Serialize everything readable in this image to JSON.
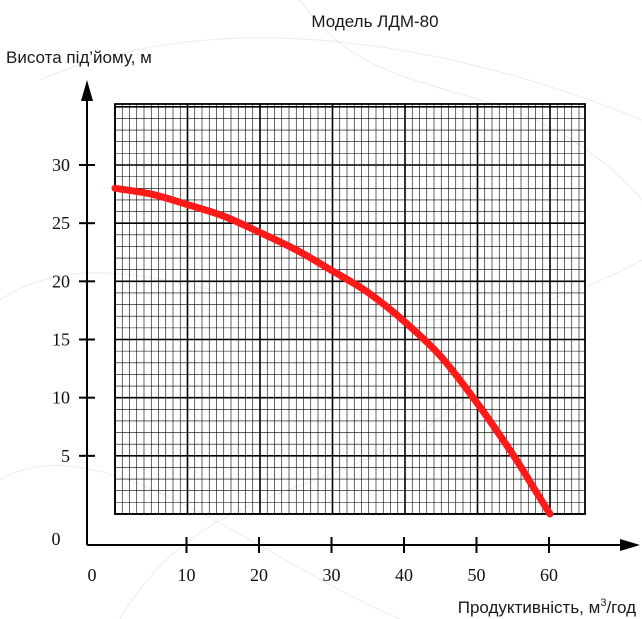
{
  "chart_data": {
    "type": "line",
    "title": "Модель ЛДМ-80",
    "ylabel": "Висота під’йому, м",
    "xlabel_main": "Продуктивність, м",
    "xlabel_sup": "3",
    "xlabel_tail": "/год",
    "x_ticks": [
      "0",
      "10",
      "20",
      "30",
      "40",
      "50",
      "60"
    ],
    "y_ticks": [
      "0",
      "5",
      "10",
      "15",
      "20",
      "25",
      "30"
    ],
    "xlim": [
      0,
      60
    ],
    "ylim": [
      0,
      30
    ],
    "grid": true,
    "series": [
      {
        "color": "#ff1a1a",
        "x": [
          0,
          5,
          10,
          15,
          20,
          25,
          30,
          35,
          40,
          45,
          50,
          55,
          58,
          60
        ],
        "y": [
          28.0,
          27.5,
          26.6,
          25.6,
          24.2,
          22.7,
          20.9,
          19.0,
          16.5,
          13.5,
          9.5,
          5.0,
          2.0,
          0
        ]
      }
    ]
  }
}
